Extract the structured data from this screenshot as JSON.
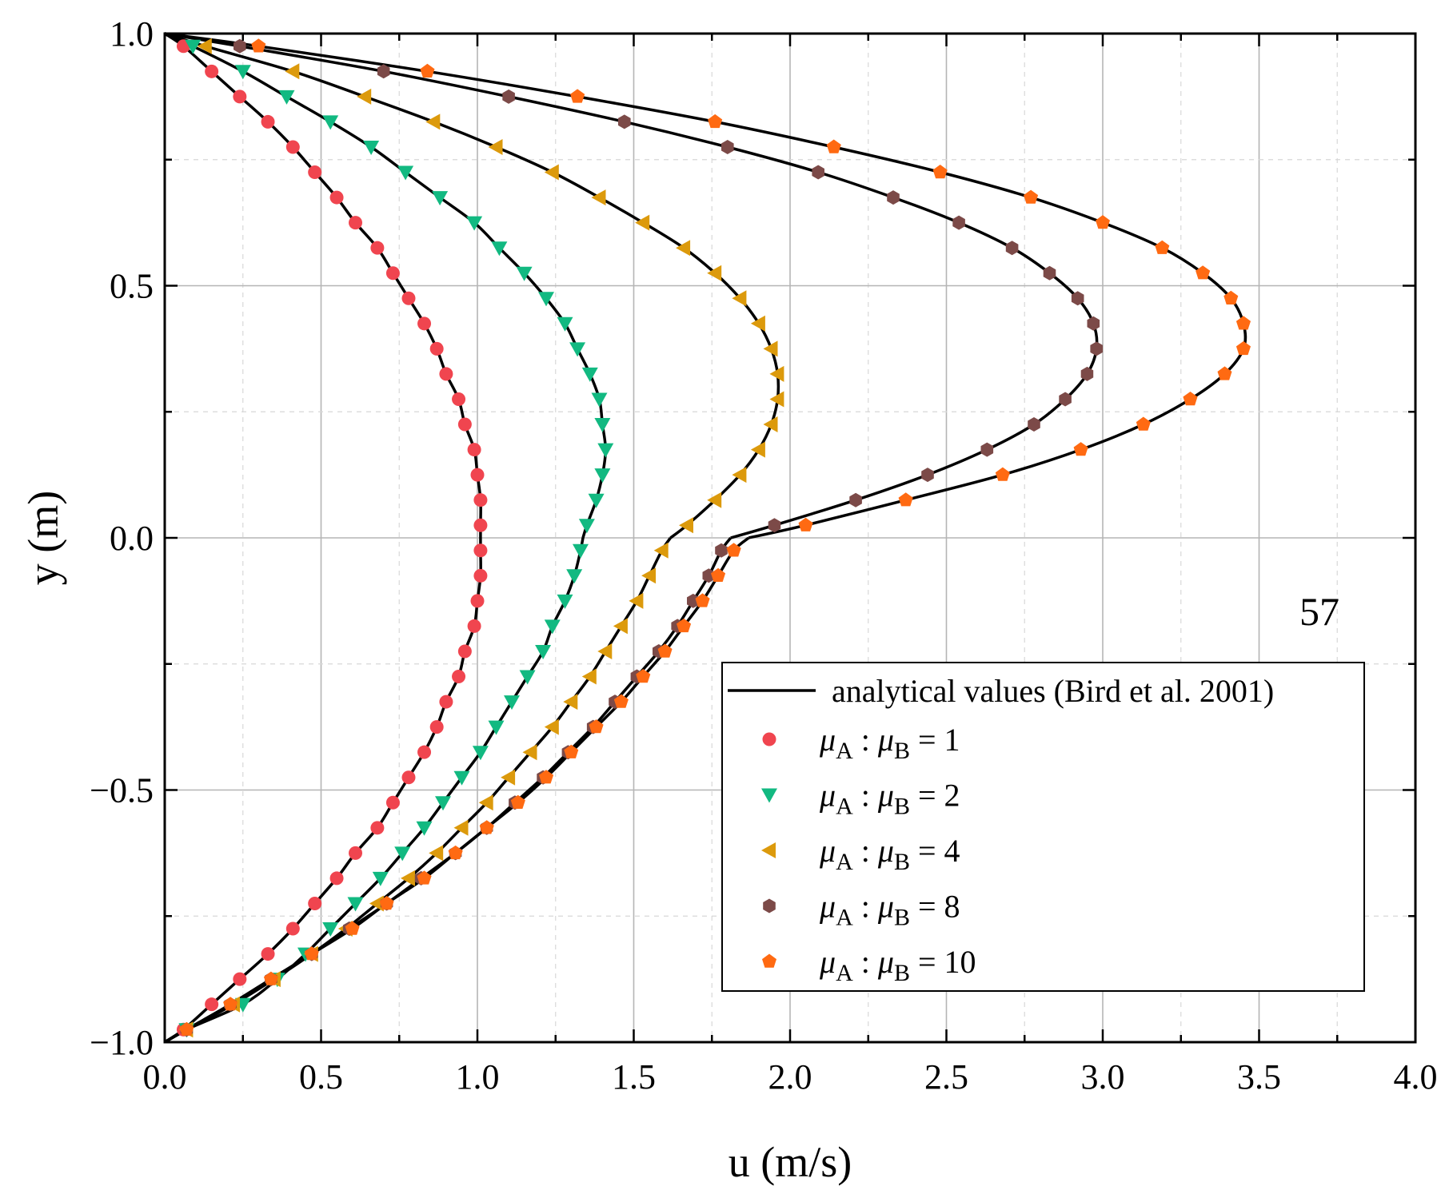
{
  "chart_data": {
    "type": "line",
    "xlabel": "u (m/s)",
    "ylabel": "y (m)",
    "xlim": [
      0.0,
      4.0
    ],
    "ylim": [
      -1.0,
      1.0
    ],
    "xticks": [
      "0.0",
      "0.5",
      "1.0",
      "1.5",
      "2.0",
      "2.5",
      "3.0",
      "3.5",
      "4.0"
    ],
    "yticks": [
      "−1.0",
      "−0.5",
      "0.0",
      "0.5",
      "1.0"
    ],
    "grid": true,
    "legend_position": "bottom-right",
    "annotation": "57",
    "analytical_label": "analytical values (Bird et al. 2001)",
    "analytical_color": "#000000",
    "series": [
      {
        "ratio_text": "= 1",
        "ratio": 1,
        "marker": "circle",
        "color": "#f0454f"
      },
      {
        "ratio_text": "= 2",
        "ratio": 2,
        "marker": "triangle-down",
        "color": "#12b981"
      },
      {
        "ratio_text": "= 4",
        "ratio": 4,
        "marker": "triangle-left",
        "color": "#dc9a0c"
      },
      {
        "ratio_text": "= 8",
        "ratio": 8,
        "marker": "hexagon",
        "color": "#7c4a48"
      },
      {
        "ratio_text": "= 10",
        "ratio": 10,
        "marker": "pentagon",
        "color": "#ff6a12"
      }
    ],
    "series_points": [
      [
        [
          0.06,
          0.975
        ],
        [
          0.15,
          0.925
        ],
        [
          0.24,
          0.875
        ],
        [
          0.33,
          0.825
        ],
        [
          0.41,
          0.775
        ],
        [
          0.48,
          0.725
        ],
        [
          0.55,
          0.675
        ],
        [
          0.61,
          0.625
        ],
        [
          0.68,
          0.575
        ],
        [
          0.73,
          0.525
        ],
        [
          0.78,
          0.475
        ],
        [
          0.83,
          0.425
        ],
        [
          0.87,
          0.375
        ],
        [
          0.9,
          0.325
        ],
        [
          0.94,
          0.275
        ],
        [
          0.96,
          0.225
        ],
        [
          0.99,
          0.175
        ],
        [
          1.0,
          0.125
        ],
        [
          1.01,
          0.075
        ],
        [
          1.01,
          0.025
        ],
        [
          1.01,
          -0.025
        ],
        [
          1.01,
          -0.075
        ],
        [
          1.0,
          -0.125
        ],
        [
          0.99,
          -0.175
        ],
        [
          0.96,
          -0.225
        ],
        [
          0.94,
          -0.275
        ],
        [
          0.9,
          -0.325
        ],
        [
          0.87,
          -0.375
        ],
        [
          0.83,
          -0.425
        ],
        [
          0.78,
          -0.475
        ],
        [
          0.73,
          -0.525
        ],
        [
          0.68,
          -0.575
        ],
        [
          0.61,
          -0.625
        ],
        [
          0.55,
          -0.675
        ],
        [
          0.48,
          -0.725
        ],
        [
          0.41,
          -0.775
        ],
        [
          0.33,
          -0.825
        ],
        [
          0.24,
          -0.875
        ],
        [
          0.15,
          -0.925
        ],
        [
          0.06,
          -0.975
        ]
      ],
      [
        [
          0.09,
          0.975
        ],
        [
          0.25,
          0.925
        ],
        [
          0.39,
          0.875
        ],
        [
          0.53,
          0.825
        ],
        [
          0.66,
          0.775
        ],
        [
          0.77,
          0.725
        ],
        [
          0.88,
          0.675
        ],
        [
          0.99,
          0.625
        ],
        [
          1.07,
          0.575
        ],
        [
          1.15,
          0.525
        ],
        [
          1.22,
          0.475
        ],
        [
          1.28,
          0.425
        ],
        [
          1.32,
          0.375
        ],
        [
          1.36,
          0.325
        ],
        [
          1.39,
          0.275
        ],
        [
          1.4,
          0.225
        ],
        [
          1.41,
          0.175
        ],
        [
          1.4,
          0.125
        ],
        [
          1.38,
          0.075
        ],
        [
          1.35,
          0.025
        ],
        [
          1.33,
          -0.025
        ],
        [
          1.31,
          -0.075
        ],
        [
          1.28,
          -0.125
        ],
        [
          1.24,
          -0.175
        ],
        [
          1.21,
          -0.225
        ],
        [
          1.16,
          -0.275
        ],
        [
          1.11,
          -0.325
        ],
        [
          1.06,
          -0.375
        ],
        [
          1.01,
          -0.425
        ],
        [
          0.95,
          -0.475
        ],
        [
          0.89,
          -0.525
        ],
        [
          0.83,
          -0.575
        ],
        [
          0.76,
          -0.625
        ],
        [
          0.69,
          -0.675
        ],
        [
          0.61,
          -0.725
        ],
        [
          0.53,
          -0.775
        ],
        [
          0.45,
          -0.825
        ],
        [
          0.36,
          -0.875
        ],
        [
          0.25,
          -0.925
        ],
        [
          0.07,
          -0.975
        ]
      ],
      [
        [
          0.13,
          0.975
        ],
        [
          0.41,
          0.925
        ],
        [
          0.64,
          0.875
        ],
        [
          0.86,
          0.825
        ],
        [
          1.06,
          0.775
        ],
        [
          1.24,
          0.725
        ],
        [
          1.39,
          0.675
        ],
        [
          1.53,
          0.625
        ],
        [
          1.66,
          0.575
        ],
        [
          1.76,
          0.525
        ],
        [
          1.84,
          0.475
        ],
        [
          1.9,
          0.425
        ],
        [
          1.94,
          0.375
        ],
        [
          1.96,
          0.325
        ],
        [
          1.96,
          0.275
        ],
        [
          1.94,
          0.225
        ],
        [
          1.9,
          0.175
        ],
        [
          1.84,
          0.125
        ],
        [
          1.76,
          0.075
        ],
        [
          1.67,
          0.025
        ],
        [
          1.59,
          -0.025
        ],
        [
          1.55,
          -0.075
        ],
        [
          1.51,
          -0.125
        ],
        [
          1.46,
          -0.175
        ],
        [
          1.41,
          -0.225
        ],
        [
          1.36,
          -0.275
        ],
        [
          1.3,
          -0.325
        ],
        [
          1.24,
          -0.375
        ],
        [
          1.17,
          -0.425
        ],
        [
          1.1,
          -0.475
        ],
        [
          1.03,
          -0.525
        ],
        [
          0.95,
          -0.575
        ],
        [
          0.87,
          -0.625
        ],
        [
          0.78,
          -0.675
        ],
        [
          0.68,
          -0.725
        ],
        [
          0.58,
          -0.775
        ],
        [
          0.47,
          -0.825
        ],
        [
          0.35,
          -0.875
        ],
        [
          0.22,
          -0.925
        ],
        [
          0.07,
          -0.975
        ]
      ],
      [
        [
          0.24,
          0.975
        ],
        [
          0.7,
          0.925
        ],
        [
          1.1,
          0.875
        ],
        [
          1.47,
          0.825
        ],
        [
          1.8,
          0.775
        ],
        [
          2.09,
          0.725
        ],
        [
          2.33,
          0.675
        ],
        [
          2.54,
          0.625
        ],
        [
          2.71,
          0.575
        ],
        [
          2.83,
          0.525
        ],
        [
          2.92,
          0.475
        ],
        [
          2.97,
          0.425
        ],
        [
          2.98,
          0.375
        ],
        [
          2.95,
          0.325
        ],
        [
          2.88,
          0.275
        ],
        [
          2.78,
          0.225
        ],
        [
          2.63,
          0.175
        ],
        [
          2.44,
          0.125
        ],
        [
          2.21,
          0.075
        ],
        [
          1.95,
          0.025
        ],
        [
          1.78,
          -0.025
        ],
        [
          1.74,
          -0.075
        ],
        [
          1.69,
          -0.125
        ],
        [
          1.64,
          -0.175
        ],
        [
          1.58,
          -0.225
        ],
        [
          1.51,
          -0.275
        ],
        [
          1.44,
          -0.325
        ],
        [
          1.37,
          -0.375
        ],
        [
          1.29,
          -0.425
        ],
        [
          1.21,
          -0.475
        ],
        [
          1.12,
          -0.525
        ],
        [
          1.03,
          -0.575
        ],
        [
          0.93,
          -0.625
        ],
        [
          0.82,
          -0.675
        ],
        [
          0.71,
          -0.725
        ],
        [
          0.59,
          -0.775
        ],
        [
          0.47,
          -0.825
        ],
        [
          0.34,
          -0.875
        ],
        [
          0.21,
          -0.925
        ],
        [
          0.07,
          -0.975
        ]
      ],
      [
        [
          0.3,
          0.975
        ],
        [
          0.84,
          0.925
        ],
        [
          1.32,
          0.875
        ],
        [
          1.76,
          0.825
        ],
        [
          2.14,
          0.775
        ],
        [
          2.48,
          0.725
        ],
        [
          2.77,
          0.675
        ],
        [
          3.0,
          0.625
        ],
        [
          3.19,
          0.575
        ],
        [
          3.32,
          0.525
        ],
        [
          3.41,
          0.475
        ],
        [
          3.45,
          0.425
        ],
        [
          3.45,
          0.375
        ],
        [
          3.39,
          0.325
        ],
        [
          3.28,
          0.275
        ],
        [
          3.13,
          0.225
        ],
        [
          2.93,
          0.175
        ],
        [
          2.68,
          0.125
        ],
        [
          2.37,
          0.075
        ],
        [
          2.05,
          0.025
        ],
        [
          1.82,
          -0.025
        ],
        [
          1.77,
          -0.075
        ],
        [
          1.72,
          -0.125
        ],
        [
          1.66,
          -0.175
        ],
        [
          1.6,
          -0.225
        ],
        [
          1.53,
          -0.275
        ],
        [
          1.46,
          -0.325
        ],
        [
          1.38,
          -0.375
        ],
        [
          1.3,
          -0.425
        ],
        [
          1.22,
          -0.475
        ],
        [
          1.13,
          -0.525
        ],
        [
          1.03,
          -0.575
        ],
        [
          0.93,
          -0.625
        ],
        [
          0.83,
          -0.675
        ],
        [
          0.71,
          -0.725
        ],
        [
          0.6,
          -0.775
        ],
        [
          0.47,
          -0.825
        ],
        [
          0.34,
          -0.875
        ],
        [
          0.21,
          -0.925
        ],
        [
          0.07,
          -0.975
        ]
      ]
    ]
  },
  "legend": {
    "mu_symbol": "μ",
    "sub_a": "A",
    "sub_b": "B",
    "colon": ":"
  }
}
